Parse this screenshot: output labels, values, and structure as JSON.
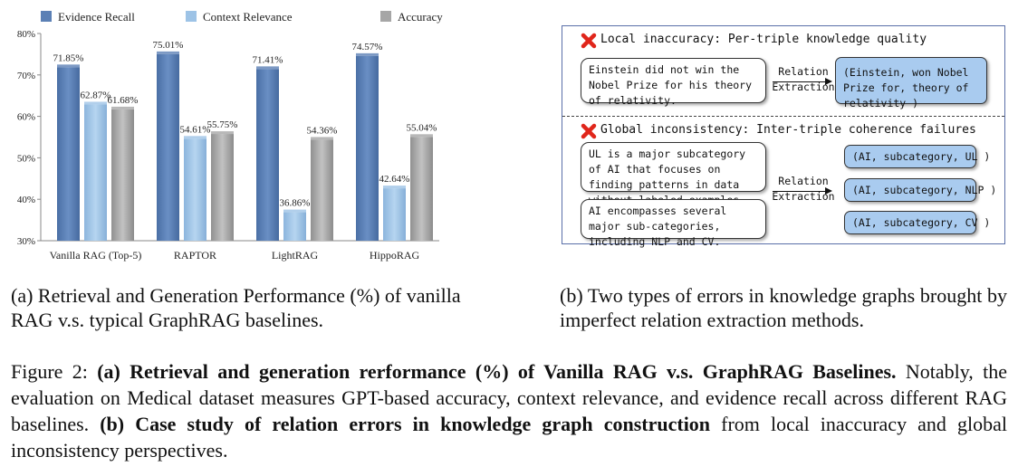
{
  "chart_data": {
    "type": "bar",
    "categories": [
      "Vanilla RAG (Top-5)",
      "RAPTOR",
      "LightRAG",
      "HippoRAG"
    ],
    "series": [
      {
        "name": "Evidence Recall",
        "values": [
          71.85,
          75.01,
          71.41,
          74.57
        ],
        "labels": [
          "71.85%",
          "75.01%",
          "71.41%",
          "74.57%"
        ],
        "color": "#5b80b5"
      },
      {
        "name": "Context Relevance",
        "values": [
          62.87,
          54.61,
          36.86,
          42.64
        ],
        "labels": [
          "62.87%",
          "54.61%",
          "36.86%",
          "42.64%"
        ],
        "color": "#9dc3e6"
      },
      {
        "name": "Accuracy",
        "values": [
          61.68,
          55.75,
          54.36,
          55.04
        ],
        "labels": [
          "61.68%",
          "55.75%",
          "54.36%",
          "55.04%"
        ],
        "color": "#a6a6a6"
      }
    ],
    "yticks": [
      "30%",
      "40%",
      "50%",
      "60%",
      "70%",
      "80%"
    ],
    "ylim": [
      30,
      80
    ],
    "legend": "top",
    "grid": false
  },
  "captions": {
    "a": "(a) Retrieval and Generation Performance (%) of vanilla RAG v.s. typical GraphRAG baselines.",
    "b": "(b) Two types of errors in knowledge graphs brought by imperfect relation extraction methods."
  },
  "figure_caption": {
    "label": "Figure 2: ",
    "bold_a": "(a) Retrieval and generation rerformance (%) of Vanilla RAG v.s. GraphRAG Baselines.",
    "text_a": " Notably, the evaluation on Medical dataset measures GPT-based accuracy, context relevance, and evidence recall across different RAG baselines. ",
    "bold_b": "(b) Case study of relation errors in knowledge graph construction",
    "text_b": " from local inaccuracy and global inconsistency perspectives."
  },
  "panel": {
    "local": {
      "title": "Local inaccuracy: Per-triple knowledge quality",
      "text": "Einstein did not win the Nobel Prize for his theory of relativity.",
      "relation": [
        "Relation",
        "Extraction"
      ],
      "triple": "(Einstein, won Nobel Prize for, theory of relativity )"
    },
    "global": {
      "title": "Global inconsistency: Inter-triple coherence failures",
      "text1": "UL is a major subcategory of AI that focuses on finding patterns in data without labeled examples.",
      "text2": "AI encompasses several major sub-categories, including NLP and CV.",
      "relation": [
        "Relation",
        "Extraction"
      ],
      "triples": [
        "(AI, subcategory, UL )",
        "(AI, subcategory, NLP )",
        "(AI, subcategory, CV )"
      ]
    }
  }
}
